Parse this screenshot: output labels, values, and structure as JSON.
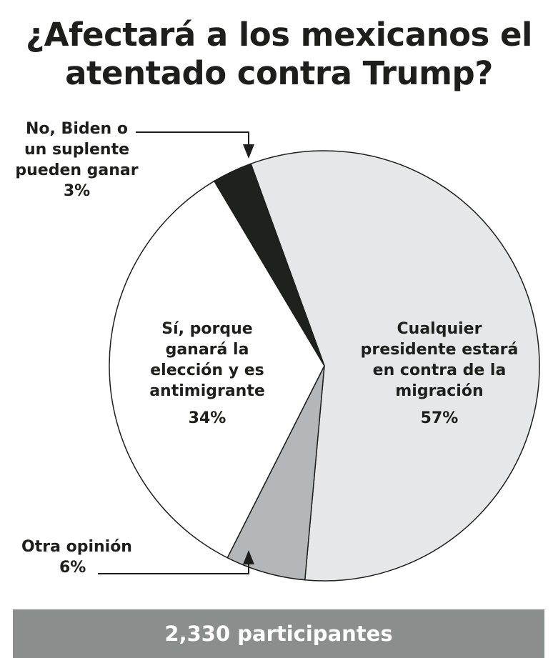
{
  "title_lines": [
    "¿Afectará a los mexicanos el",
    "atentado contra Trump?"
  ],
  "chart_data": {
    "type": "pie",
    "title": "¿Afectará a los mexicanos el atentado contra Trump?",
    "slices": [
      {
        "label_lines": [
          "Cualquier",
          "presidente estará",
          "en contra de la",
          "migración"
        ],
        "value": 57,
        "value_label": "57%",
        "color": "#e6e7e8"
      },
      {
        "label_lines": [
          "Otra opinión"
        ],
        "value": 6,
        "value_label": "6%",
        "color": "#b4b7b9"
      },
      {
        "label_lines": [
          "Sí, porque",
          "ganará la",
          "elección y es",
          "antimigrante"
        ],
        "value": 34,
        "value_label": "34%",
        "color": "#ffffff"
      },
      {
        "label_lines": [
          "No, Biden o",
          "un suplente",
          "pueden ganar"
        ],
        "value": 3,
        "value_label": "3%",
        "color": "#1f211e"
      }
    ]
  },
  "footer": "2,330 participantes"
}
